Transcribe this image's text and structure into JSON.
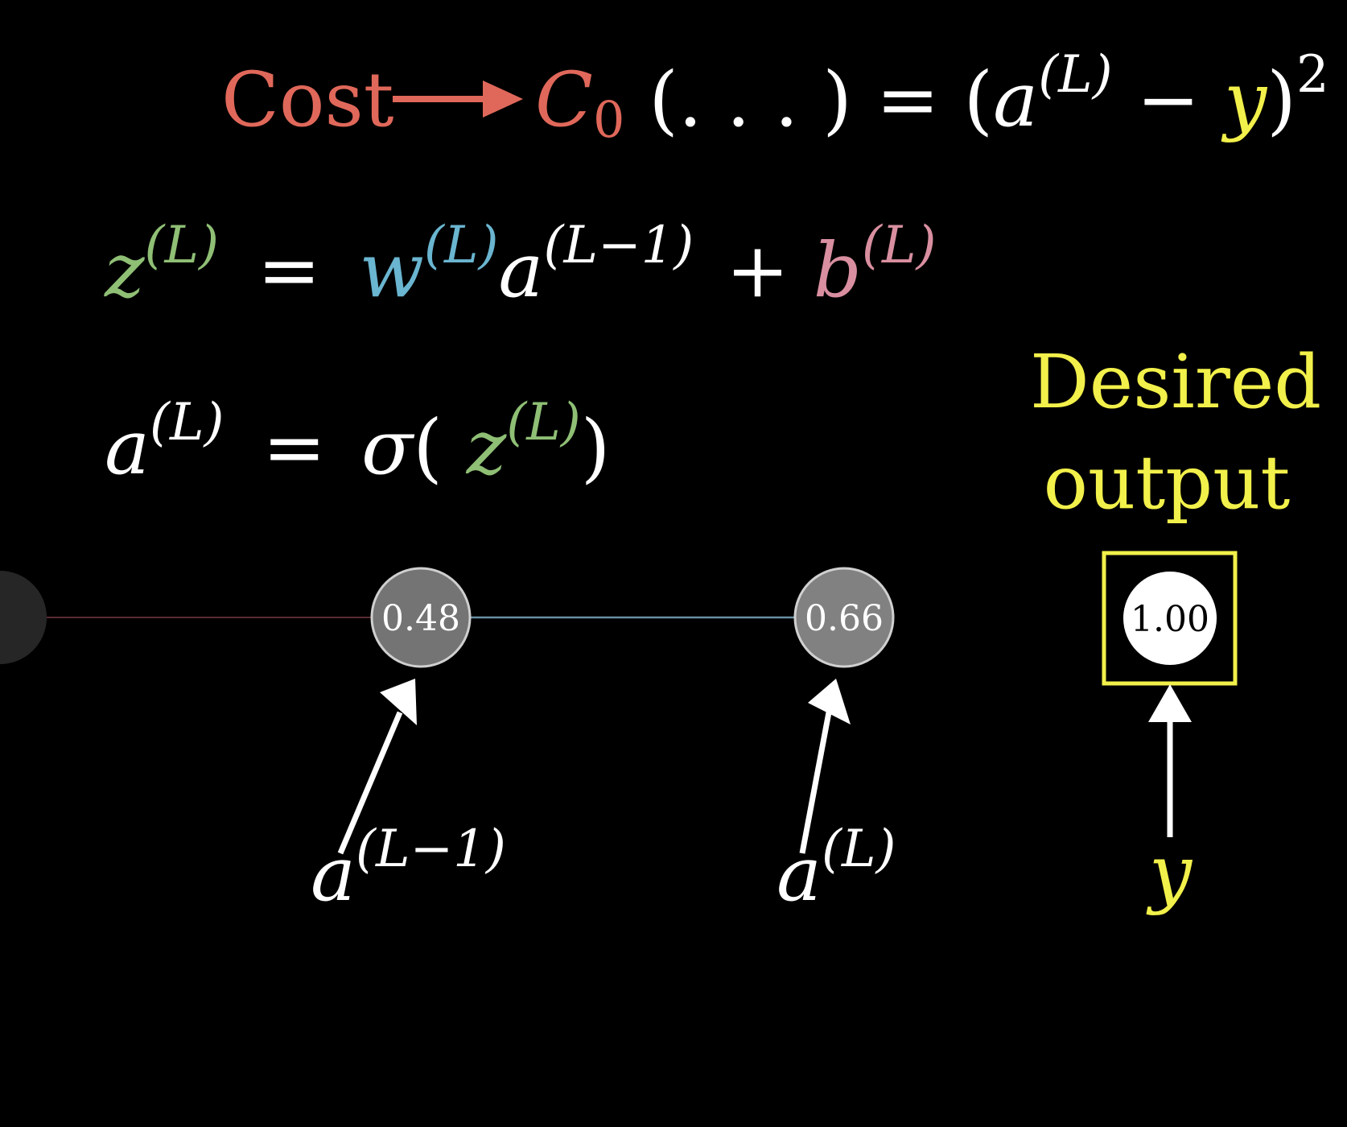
{
  "colors": {
    "background": "#000000",
    "cost": "#e0685a",
    "z": "#8fbf75",
    "w": "#6ab5d0",
    "b": "#d98fa0",
    "y": "#f2f04a",
    "text": "#ffffff",
    "link_left": "#5a2a30",
    "link_mid": "#6a8fa3"
  },
  "equations": {
    "cost_label": "Cost",
    "cost_func": "C",
    "cost_sub": "0",
    "cost_args": "(. . . )",
    "eq": "=",
    "open": "(",
    "a": "a",
    "sup_L": "(L)",
    "minus": "−",
    "y": "y",
    "close": ")",
    "square": "2",
    "z": "z",
    "w": "w",
    "sup_Lm1": "(L−1)",
    "plus": "+",
    "b": "b",
    "sigma": "σ"
  },
  "desired": {
    "line1": "Desired",
    "line2": "output"
  },
  "nodes": [
    {
      "value": "0.48",
      "brightness": 0.48
    },
    {
      "value": "0.66",
      "brightness": 0.66
    },
    {
      "value": "1.00",
      "brightness": 1.0
    }
  ],
  "labels": {
    "prev": {
      "base": "a",
      "sup": "(L−1)"
    },
    "curr": {
      "base": "a",
      "sup": "(L)"
    },
    "target": "y"
  }
}
